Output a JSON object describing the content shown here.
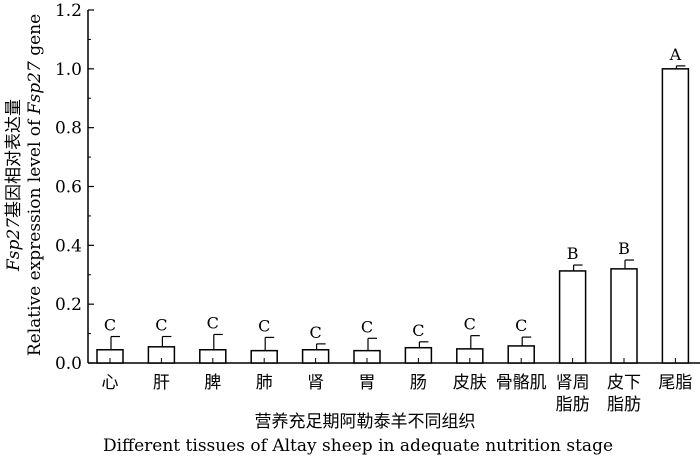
{
  "chart_data": {
    "type": "bar",
    "categories": [
      [
        "心"
      ],
      [
        "肝"
      ],
      [
        "脾"
      ],
      [
        "肺"
      ],
      [
        "肾"
      ],
      [
        "胃"
      ],
      [
        "肠"
      ],
      [
        "皮肤"
      ],
      [
        "骨骼肌"
      ],
      [
        "肾周",
        "脂肪"
      ],
      [
        "皮下",
        "脂肪"
      ],
      [
        "尾脂"
      ]
    ],
    "values": [
      0.045,
      0.055,
      0.045,
      0.042,
      0.045,
      0.042,
      0.052,
      0.048,
      0.058,
      0.313,
      0.32,
      1.0
    ],
    "errors": [
      0.045,
      0.035,
      0.052,
      0.045,
      0.02,
      0.042,
      0.02,
      0.045,
      0.03,
      0.02,
      0.03,
      0.01
    ],
    "significance": [
      "C",
      "C",
      "C",
      "C",
      "C",
      "C",
      "C",
      "C",
      "C",
      "B",
      "B",
      "A"
    ],
    "ylim": [
      0,
      1.2
    ],
    "yticks": [
      "0.0",
      "0.2",
      "0.4",
      "0.6",
      "0.8",
      "1.0",
      "1.2"
    ],
    "xlabel_cn": "营养充足期阿勒泰羊不同组织",
    "xlabel_en": "Different tissues of Altay sheep in adequate nutrition stage",
    "ylabel_cn_prefix": "Fsp27",
    "ylabel_cn_rest": "基因相对表达量",
    "ylabel_en_prefix": "Relative expression level of ",
    "ylabel_en_gene": "Fsp27",
    "ylabel_en_suffix": " gene"
  }
}
